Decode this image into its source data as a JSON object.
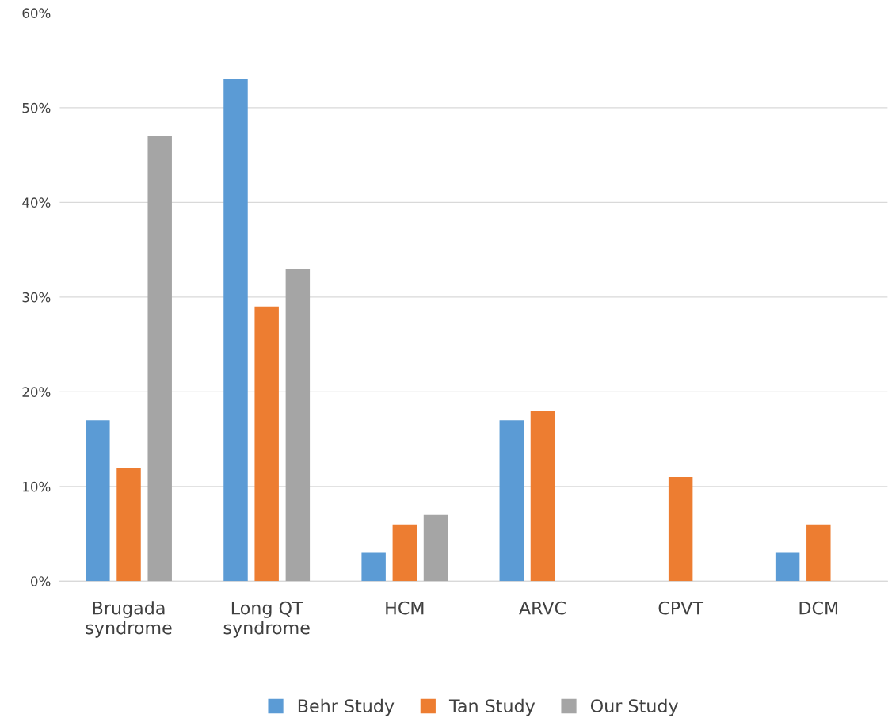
{
  "chart_data": {
    "type": "bar",
    "categories": [
      "Brugada\nsyndrome",
      "Long QT\nsyndrome",
      "HCM",
      "ARVC",
      "CPVT",
      "DCM"
    ],
    "series": [
      {
        "name": "Behr Study",
        "color": "#5b9bd5",
        "values": [
          17,
          53,
          3,
          17,
          null,
          3
        ]
      },
      {
        "name": "Tan Study",
        "color": "#ed7d31",
        "values": [
          12,
          29,
          6,
          18,
          11,
          6
        ]
      },
      {
        "name": "Our Study",
        "color": "#a5a5a5",
        "values": [
          47,
          33,
          7,
          null,
          null,
          null
        ]
      }
    ],
    "ylim": [
      0,
      60
    ],
    "yticks": [
      {
        "value": 0,
        "label": "0%"
      },
      {
        "value": 10,
        "label": "10%"
      },
      {
        "value": 20,
        "label": "20%"
      },
      {
        "value": 30,
        "label": "30%"
      },
      {
        "value": 40,
        "label": "40%"
      },
      {
        "value": 50,
        "label": "50%"
      },
      {
        "value": 60,
        "label": "60%"
      }
    ],
    "grid": "y",
    "legend": "bottom"
  }
}
